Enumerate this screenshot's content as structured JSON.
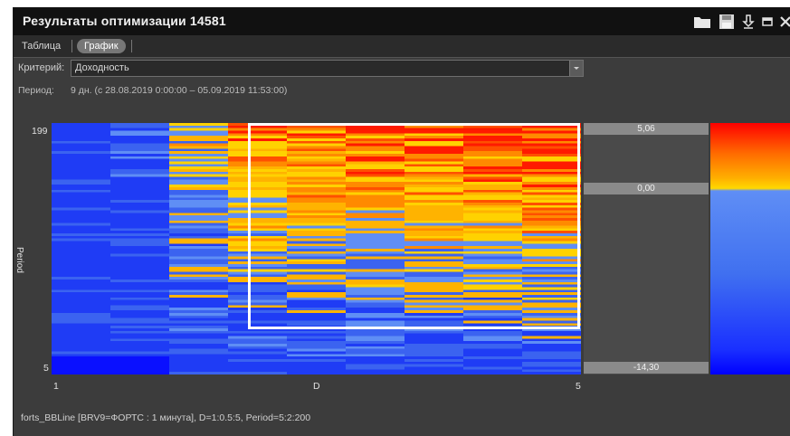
{
  "window": {
    "title": "Результаты оптимизации 14581"
  },
  "toolbar_icons": [
    "folder-icon",
    "save-icon",
    "download-icon",
    "minimize-icon",
    "close-icon"
  ],
  "tabs": [
    {
      "label": "Таблица",
      "active": false
    },
    {
      "label": "График",
      "active": true
    }
  ],
  "criterion": {
    "label": "Критерий:",
    "value": "Доходность"
  },
  "period": {
    "label": "Период:",
    "value": "9 дн. (с 28.08.2019 0:00:00 – 05.09.2019 11:53:00)"
  },
  "chart_data": {
    "type": "heatmap",
    "xlabel": "D",
    "ylabel": "Period",
    "x_ticks": [
      "1",
      "5"
    ],
    "y_ticks": [
      "199",
      "5"
    ],
    "x_range": [
      1,
      5
    ],
    "y_range": [
      5,
      200
    ],
    "color_scale": {
      "max": "5,06",
      "mid": "0,00",
      "min": "-14,30",
      "max_color": "#ff0000",
      "min_color": "#0000ff"
    }
  },
  "status": "forts_BBLine [BRV9=ФОРТС : 1 минута], D=1:0.5:5, Period=5:2:200"
}
